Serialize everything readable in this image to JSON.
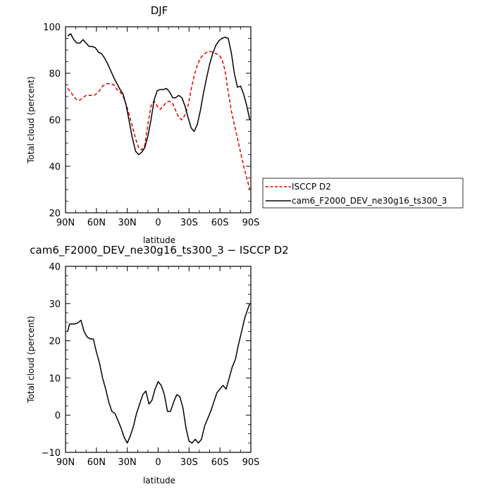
{
  "chart_data": [
    {
      "type": "line",
      "title": "DJF",
      "xlabel": "latitude",
      "ylabel": "Total cloud (percent)",
      "xlim": [
        90,
        -90
      ],
      "ylim": [
        20,
        100
      ],
      "xticks": [
        90,
        60,
        30,
        0,
        -30,
        -60,
        -90
      ],
      "xticklabels": [
        "90N",
        "60N",
        "30N",
        "0",
        "30S",
        "60S",
        "90S"
      ],
      "yticks": [
        20,
        40,
        60,
        80,
        100
      ],
      "yticklabels": [
        "20",
        "40",
        "60",
        "80",
        "100"
      ],
      "legend": "outside-right",
      "series": [
        {
          "name": "ISCCP D2",
          "color": "#e00000",
          "dash": true,
          "x": [
            88,
            85,
            82,
            79,
            76,
            73,
            70,
            66,
            62,
            58,
            54,
            50,
            46,
            43,
            40,
            37,
            34,
            31,
            28,
            25,
            22,
            19,
            16,
            13,
            10,
            7,
            4,
            1,
            -2,
            -5,
            -8,
            -11,
            -14,
            -17,
            -20,
            -23,
            -26,
            -29,
            -32,
            -35,
            -38,
            -41,
            -44,
            -47,
            -50,
            -53,
            -56,
            -59,
            -62,
            -65,
            -68,
            -71,
            -74,
            -77,
            -80,
            -83,
            -86,
            -89
          ],
          "y": [
            73.5,
            72,
            70,
            68.5,
            68.5,
            69.5,
            70.5,
            70.5,
            70.5,
            72,
            74.5,
            75.5,
            75.5,
            75,
            73,
            72,
            70,
            66.5,
            62,
            57,
            52,
            48,
            47,
            49,
            58,
            66,
            68,
            66,
            64.5,
            66,
            67.5,
            68,
            67,
            64,
            61,
            60,
            62,
            66,
            73,
            79,
            83.5,
            86.5,
            88,
            89,
            89.5,
            89,
            88.5,
            88,
            86,
            81,
            72,
            64,
            58,
            52,
            46,
            40,
            35,
            30
          ]
        },
        {
          "name": "cam6_F2000_DEV_ne30g16_ts300_3",
          "color": "#000000",
          "dash": false,
          "x": [
            88,
            85,
            82,
            79,
            76,
            73,
            70,
            67,
            64,
            61,
            58,
            55,
            52,
            49,
            46,
            43,
            40,
            37,
            34,
            31,
            28,
            25,
            22,
            19,
            16,
            13,
            10,
            7,
            4,
            1,
            -2,
            -5,
            -8,
            -11,
            -14,
            -17,
            -20,
            -23,
            -26,
            -29,
            -32,
            -35,
            -38,
            -41,
            -44,
            -47,
            -50,
            -53,
            -56,
            -59,
            -62,
            -65,
            -68,
            -71,
            -74,
            -77,
            -80,
            -83,
            -86,
            -89
          ],
          "y": [
            96,
            97,
            94.5,
            93,
            93,
            94.5,
            93,
            91.5,
            91.5,
            91,
            89,
            88.5,
            86.5,
            84,
            81,
            78,
            75.5,
            73,
            71,
            66,
            59,
            52,
            46.5,
            45,
            46,
            48,
            53,
            60,
            68.5,
            72.5,
            73,
            73,
            73.5,
            72,
            69.5,
            69.5,
            70.5,
            69.5,
            66,
            61,
            56.5,
            55,
            58,
            64,
            71.5,
            78,
            84,
            88.5,
            92,
            94,
            95,
            95.5,
            95,
            89,
            80,
            74,
            74.5,
            71,
            66,
            60
          ]
        }
      ]
    },
    {
      "type": "line",
      "title": "cam6_F2000_DEV_ne30g16_ts300_3 − ISCCP D2",
      "xlabel": "latitude",
      "ylabel": "Total cloud (percent)",
      "xlim": [
        90,
        -90
      ],
      "ylim": [
        -10,
        40
      ],
      "xticks": [
        90,
        60,
        30,
        0,
        -30,
        -60,
        -90
      ],
      "xticklabels": [
        "90N",
        "60N",
        "30N",
        "0",
        "30S",
        "60S",
        "90S"
      ],
      "yticks": [
        -10,
        0,
        10,
        20,
        30,
        40
      ],
      "yticklabels": [
        "−10",
        "0",
        "10",
        "20",
        "30",
        "40"
      ],
      "series": [
        {
          "color": "#000000",
          "dash": false,
          "x": [
            88,
            86,
            84,
            81,
            78,
            75,
            72,
            69,
            66,
            63,
            60,
            57,
            54,
            51,
            48,
            45,
            42,
            39,
            36,
            33,
            30,
            27,
            24,
            21,
            18,
            15,
            12,
            9,
            6,
            3,
            0,
            -3,
            -6,
            -9,
            -12,
            -15,
            -18,
            -21,
            -24,
            -27,
            -30,
            -33,
            -36,
            -39,
            -42,
            -45,
            -48,
            -51,
            -54,
            -57,
            -60,
            -63,
            -66,
            -69,
            -72,
            -75,
            -78,
            -81,
            -84,
            -87,
            -89
          ],
          "y": [
            22.5,
            24.5,
            24.5,
            24.5,
            24.8,
            25.5,
            22.5,
            21,
            20.5,
            20.5,
            17,
            14,
            10,
            7,
            3.5,
            1,
            0.5,
            -1.5,
            -3.5,
            -6,
            -7.5,
            -5.5,
            -3,
            0.5,
            3,
            5.5,
            6.5,
            3,
            4,
            7,
            9,
            8,
            5.5,
            1,
            1,
            3.5,
            5.5,
            5,
            2,
            -3.5,
            -7,
            -7.5,
            -6.5,
            -7.5,
            -6.5,
            -3,
            -1,
            1,
            3.5,
            6,
            7,
            8,
            7,
            10,
            13,
            15,
            19,
            22.5,
            26,
            28.5,
            30
          ]
        }
      ]
    }
  ]
}
